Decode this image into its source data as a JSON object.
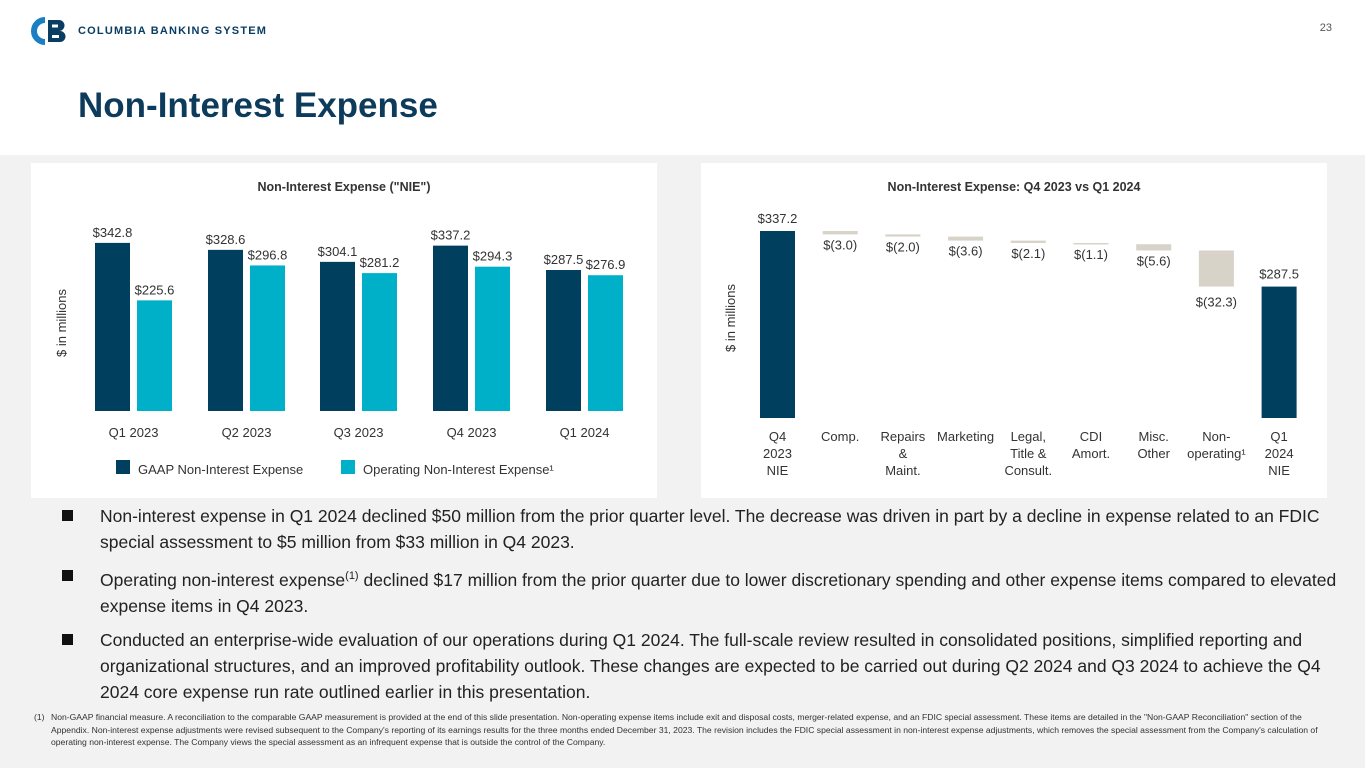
{
  "header": {
    "company_name": "COLUMBIA BANKING SYSTEM",
    "page_number": "23",
    "title": "Non-Interest Expense",
    "brand_color": "#0d3b5c"
  },
  "chart_data": [
    {
      "type": "bar",
      "title": "Non-Interest Expense (\"NIE\")",
      "ylabel": "$ in millions",
      "xlabel": "",
      "categories": [
        "Q1 2023",
        "Q2 2023",
        "Q3 2023",
        "Q4 2023",
        "Q1 2024"
      ],
      "series": [
        {
          "name": "GAAP Non-Interest Expense",
          "color": "#003f5e",
          "values": [
            342.8,
            328.6,
            304.1,
            337.2,
            287.5
          ],
          "labels": [
            "$342.8",
            "$328.6",
            "$304.1",
            "$337.2",
            "$287.5"
          ]
        },
        {
          "name": "Operating Non-Interest Expense¹",
          "color": "#00b0c8",
          "values": [
            225.6,
            296.8,
            281.2,
            294.3,
            276.9
          ],
          "labels": [
            "$225.6",
            "$296.8",
            "$281.2",
            "$294.3",
            "$276.9"
          ]
        }
      ],
      "ylim": [
        0,
        400
      ],
      "legend": "bottom",
      "grid": false
    },
    {
      "type": "waterfall",
      "title": "Non-Interest Expense: Q4 2023 vs Q1 2024",
      "ylabel": "$ in millions",
      "xlabel": "",
      "categories": [
        [
          "Q4",
          "2023",
          "NIE"
        ],
        [
          "Comp."
        ],
        [
          "Repairs",
          "&",
          "Maint."
        ],
        [
          "Marketing"
        ],
        [
          "Legal,",
          "Title &",
          "Consult."
        ],
        [
          "CDI",
          "Amort."
        ],
        [
          "Misc.",
          "Other"
        ],
        [
          "Non-",
          "operating¹"
        ],
        [
          "Q1",
          "2024",
          "NIE"
        ]
      ],
      "values": [
        337.2,
        -3.0,
        -2.0,
        -3.6,
        -2.1,
        -1.1,
        -5.6,
        -32.3,
        287.5
      ],
      "labels": [
        "$337.2",
        "$(3.0)",
        "$(2.0)",
        "$(3.6)",
        "$(2.1)",
        "$(1.1)",
        "$(5.6)",
        "$(32.3)",
        "$287.5"
      ],
      "kinds": [
        "total",
        "delta",
        "delta",
        "delta",
        "delta",
        "delta",
        "delta",
        "delta",
        "total"
      ],
      "total_color": "#003f5e",
      "delta_color": "#d8d3c8",
      "ylim": [
        170,
        345
      ],
      "grid": false
    }
  ],
  "bullets": [
    {
      "parts": [
        "Non-interest expense in Q1 2024 declined $50 million from the prior quarter level. The decrease was driven in part by a decline in expense related to an FDIC special assessment to $5 million from $33 million in Q4 2023."
      ]
    },
    {
      "parts": [
        "Operating non-interest expense",
        "(1)",
        " declined $17 million from the prior quarter due to lower discretionary spending and other expense items compared to elevated expense items in Q4 2023."
      ]
    },
    {
      "parts": [
        "Conducted an enterprise-wide evaluation of our operations during Q1 2024. The full-scale review resulted in consolidated positions, simplified reporting and organizational structures, and an improved profitability outlook. These changes are expected to be carried out during Q2 2024 and Q3 2024 to achieve the Q4 2024 core expense run rate outlined earlier in this presentation."
      ]
    }
  ],
  "footnote": {
    "number": "(1)",
    "text": "Non-GAAP financial measure. A reconciliation to the comparable GAAP measurement is provided at the end of this slide presentation. Non-operating expense items include exit and disposal costs, merger-related expense, and an FDIC special assessment. These items are detailed in the \"Non-GAAP Reconciliation\" section of the Appendix. Non-interest expense adjustments were revised subsequent to the Company's reporting of its earnings results for the three months ended December 31, 2023. The revision includes the FDIC special assessment in non-interest expense adjustments, which removes the special assessment from the Company's calculation of operating non-interest expense. The Company views the special assessment as an infrequent expense that is outside the control of the Company."
  }
}
